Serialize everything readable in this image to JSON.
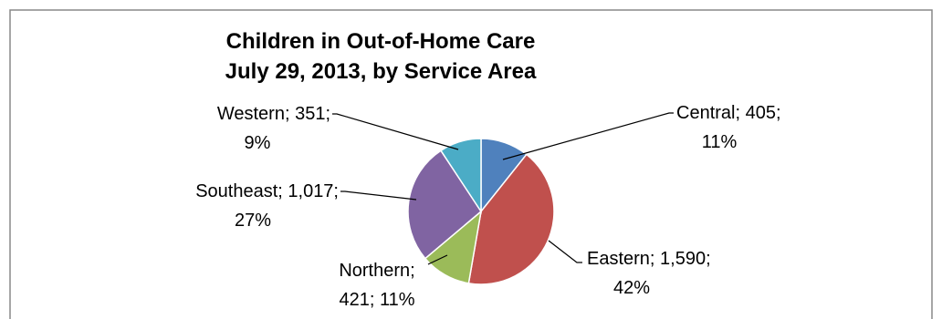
{
  "chart_data": {
    "type": "pie",
    "title": [
      "Children in Out-of-Home Care",
      "July 29, 2013, by Service Area"
    ],
    "slices": [
      {
        "name": "Central",
        "value": 405,
        "percent": "11%",
        "value_label": "405",
        "label_lines": [
          "Central; 405;",
          "11%"
        ],
        "color": "#4f81bd"
      },
      {
        "name": "Eastern",
        "value": 1590,
        "percent": "42%",
        "value_label": "1,590",
        "label_lines": [
          "Eastern; 1,590;",
          "42%"
        ],
        "color": "#c0504d"
      },
      {
        "name": "Northern",
        "value": 421,
        "percent": "11%",
        "value_label": "421",
        "label_lines": [
          "Northern;",
          "421; 11%"
        ],
        "color": "#9bbb59"
      },
      {
        "name": "Southeast",
        "value": 1017,
        "percent": "27%",
        "value_label": "1,017",
        "label_lines": [
          "Southeast; 1,017;",
          "27%"
        ],
        "color": "#8064a2"
      },
      {
        "name": "Western",
        "value": 351,
        "percent": "9%",
        "value_label": "351",
        "label_lines": [
          "Western; 351;",
          "9%"
        ],
        "color": "#4bacc6"
      }
    ],
    "start_angle": "12 o'clock",
    "direction": "clockwise",
    "legend": "none"
  }
}
